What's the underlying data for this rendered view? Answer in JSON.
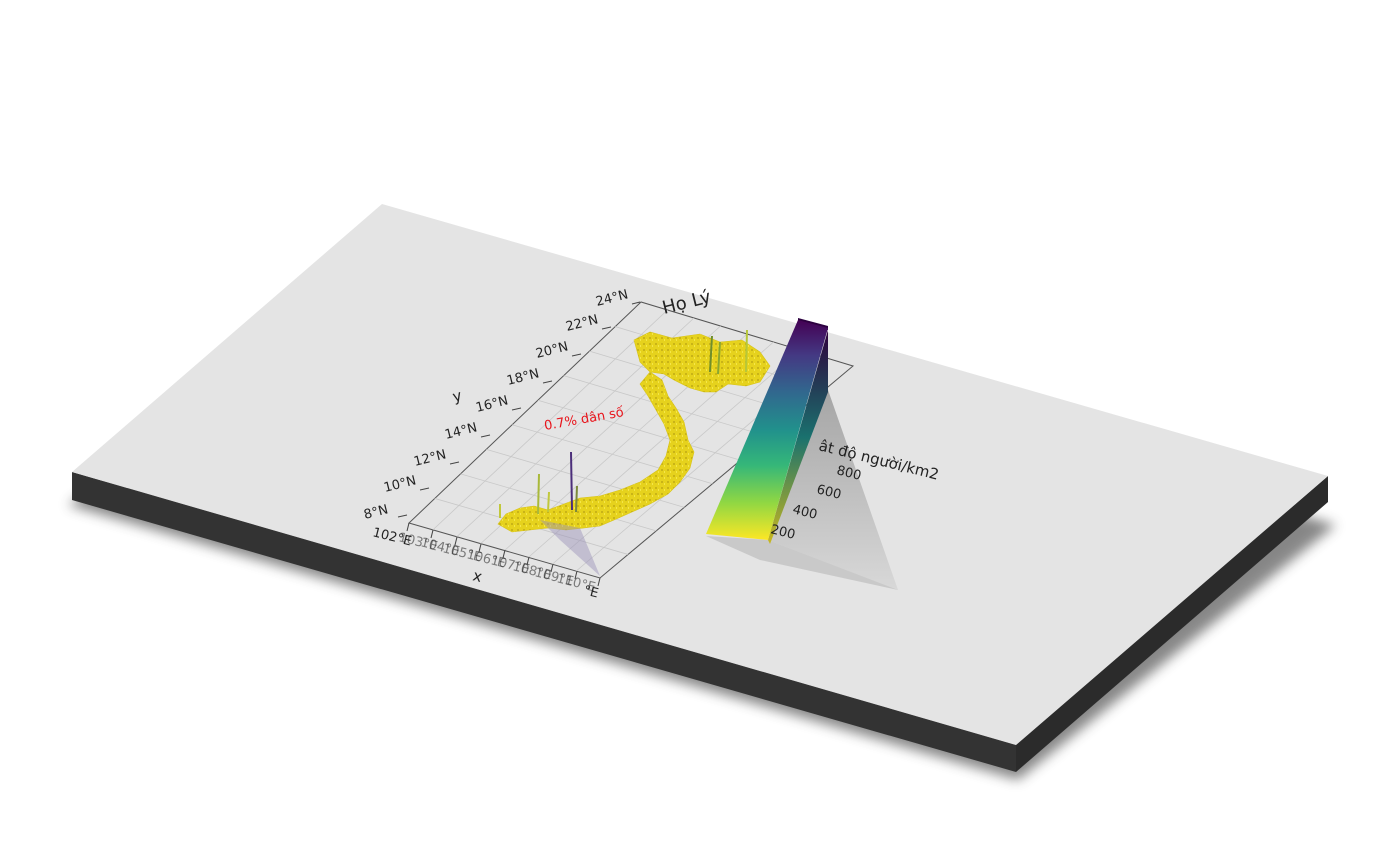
{
  "map": {
    "title": "Họ Lý",
    "annotation": "0.7% dân số",
    "y_axis_label": "y",
    "x_axis_label": "x",
    "lat_ticks": [
      "24°N",
      "22°N",
      "20°N",
      "18°N",
      "16°N",
      "14°N",
      "12°N",
      "10°N",
      "8°N"
    ],
    "lon_ticks": [
      "102°E",
      "103°E",
      "104°E",
      "105°E",
      "106°E",
      "107°E",
      "108°E",
      "109°E",
      "110°E"
    ],
    "lon_tick_overlap_text": "102°E",
    "lon_tick_end_text": "°E"
  },
  "legend": {
    "title": "mật độ người/km2",
    "title_visible": "ât độ người/km2",
    "ticks": [
      "800",
      "600",
      "400",
      "200"
    ],
    "colors": [
      "#fde725",
      "#90d743",
      "#35b779",
      "#21918c",
      "#31688e",
      "#443983",
      "#440154"
    ]
  },
  "colors": {
    "plate_top": "#e4e4e4",
    "plate_side": "#333333",
    "plate_shadow": "#7a7a7a",
    "annotation_color": "#e8131a",
    "map_fill": "#e6d21d"
  }
}
